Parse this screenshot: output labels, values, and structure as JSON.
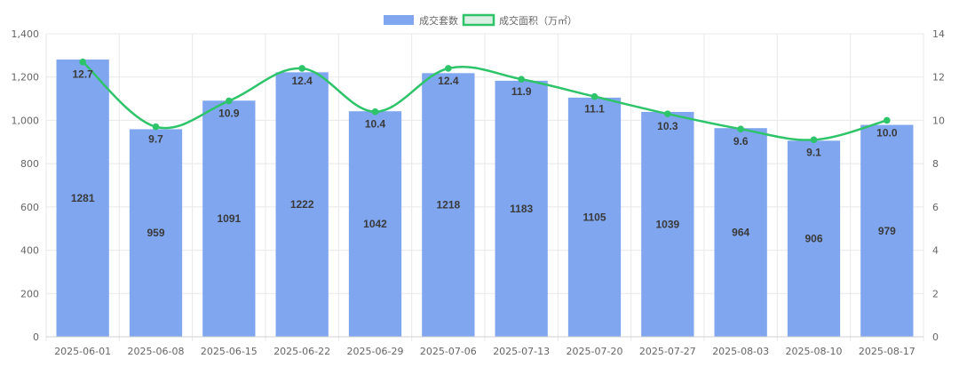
{
  "chart_data": {
    "type": "bar",
    "categories": [
      "2025-06-01",
      "2025-06-08",
      "2025-06-15",
      "2025-06-22",
      "2025-06-29",
      "2025-07-06",
      "2025-07-13",
      "2025-07-20",
      "2025-07-27",
      "2025-08-03",
      "2025-08-10",
      "2025-08-17"
    ],
    "series": [
      {
        "name": "成交套数",
        "type": "bar",
        "axis": "left",
        "values": [
          1281,
          959,
          1091,
          1222,
          1042,
          1218,
          1183,
          1105,
          1039,
          964,
          906,
          979
        ],
        "labels": [
          "1281",
          "959",
          "1091",
          "1222",
          "1042",
          "1218",
          "1183",
          "1105",
          "1039",
          "964",
          "906",
          "979"
        ]
      },
      {
        "name": "成交面积（万㎡）",
        "type": "line",
        "axis": "right",
        "values": [
          12.7,
          9.7,
          10.9,
          12.4,
          10.4,
          12.4,
          11.9,
          11.1,
          10.3,
          9.6,
          9.1,
          10.0
        ],
        "labels": [
          "12.7",
          "9.7",
          "10.9",
          "12.4",
          "10.4",
          "12.4",
          "11.9",
          "11.1",
          "10.3",
          "9.6",
          "9.1",
          "10.0"
        ]
      }
    ],
    "y_left": {
      "min": 0,
      "max": 1400,
      "ticks": [
        0,
        200,
        400,
        600,
        800,
        1000,
        1200,
        1400
      ],
      "tick_labels": [
        "0",
        "200",
        "400",
        "600",
        "800",
        "1,000",
        "1,200",
        "1,400"
      ]
    },
    "y_right": {
      "min": 0,
      "max": 14,
      "ticks": [
        0,
        2,
        4,
        6,
        8,
        10,
        12,
        14
      ],
      "tick_labels": [
        "0",
        "2",
        "4",
        "6",
        "8",
        "10",
        "12",
        "14"
      ]
    },
    "grid": true,
    "legend_position": "top-center",
    "colors": {
      "bar": "#7fa6ee",
      "line": "#2ec46a",
      "legend_line_fill": "#dcefe3",
      "grid": "#e8e8e8",
      "axis": "#d0d0d0"
    }
  }
}
